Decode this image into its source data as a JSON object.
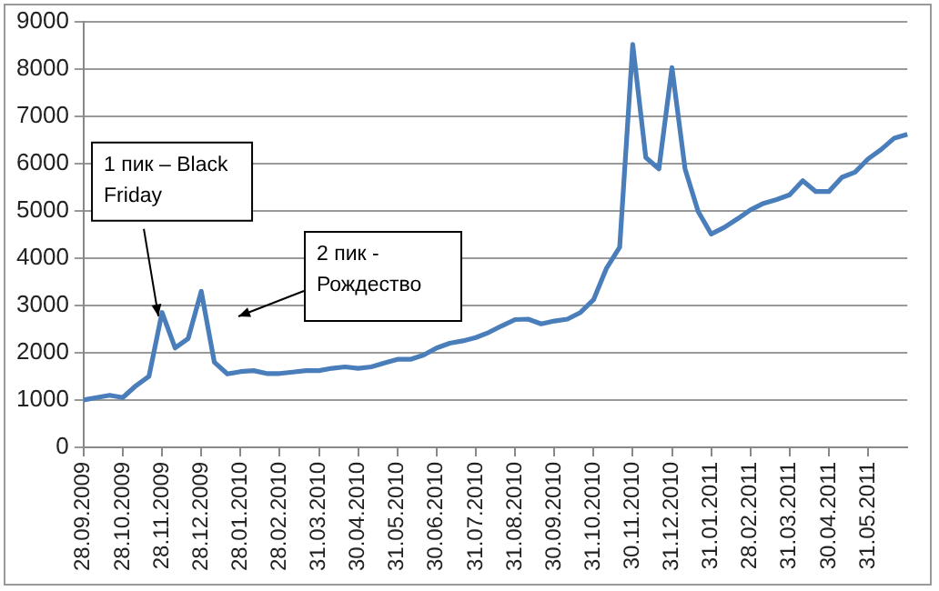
{
  "chart_data": {
    "type": "line",
    "categories": [
      "28.09.2009",
      null,
      null,
      "28.10.2009",
      null,
      null,
      "28.11.2009",
      null,
      null,
      "28.12.2009",
      null,
      null,
      "28.01.2010",
      null,
      null,
      "28.02.2010",
      null,
      null,
      "31.03.2010",
      null,
      null,
      "30.04.2010",
      null,
      null,
      "31.05.2010",
      null,
      null,
      "30.06.2010",
      null,
      null,
      "31.07.2010",
      null,
      null,
      "31.08.2010",
      null,
      null,
      "30.09.2010",
      null,
      null,
      "31.10.2010",
      null,
      null,
      "30.11.2010",
      null,
      null,
      "31.12.2010",
      null,
      null,
      "31.01.2011",
      null,
      null,
      "28.02.2011",
      null,
      null,
      "31.03.2011",
      null,
      null,
      "30.04.2011",
      null,
      null,
      "31.05.2011",
      null,
      null,
      null
    ],
    "series": [
      {
        "color": "#4a7ebb",
        "values": [
          1000,
          1050,
          1100,
          1050,
          1300,
          1500,
          2850,
          2100,
          2300,
          3300,
          1800,
          1550,
          1600,
          1620,
          1560,
          1560,
          1590,
          1620,
          1620,
          1670,
          1700,
          1670,
          1700,
          1780,
          1860,
          1860,
          1950,
          2100,
          2200,
          2250,
          2320,
          2430,
          2570,
          2700,
          2710,
          2610,
          2670,
          2710,
          2850,
          3120,
          3790,
          4230,
          8520,
          6130,
          5890,
          8030,
          5890,
          4990,
          4510,
          4650,
          4830,
          5020,
          5160,
          5240,
          5340,
          5640,
          5410,
          5410,
          5710,
          5820,
          6100,
          6300,
          6540,
          6620
        ]
      }
    ],
    "ylim": [
      0,
      9000
    ],
    "yticks": [
      0,
      1000,
      2000,
      3000,
      4000,
      5000,
      6000,
      7000,
      8000,
      9000
    ],
    "grid": "y",
    "legend": false,
    "marker": "none",
    "line_style": "solid",
    "annotations": [
      {
        "text": "1 пик – Black Friday",
        "x": "28.11.2009",
        "y": 2850
      },
      "2 пик - Рождество"
    ]
  }
}
